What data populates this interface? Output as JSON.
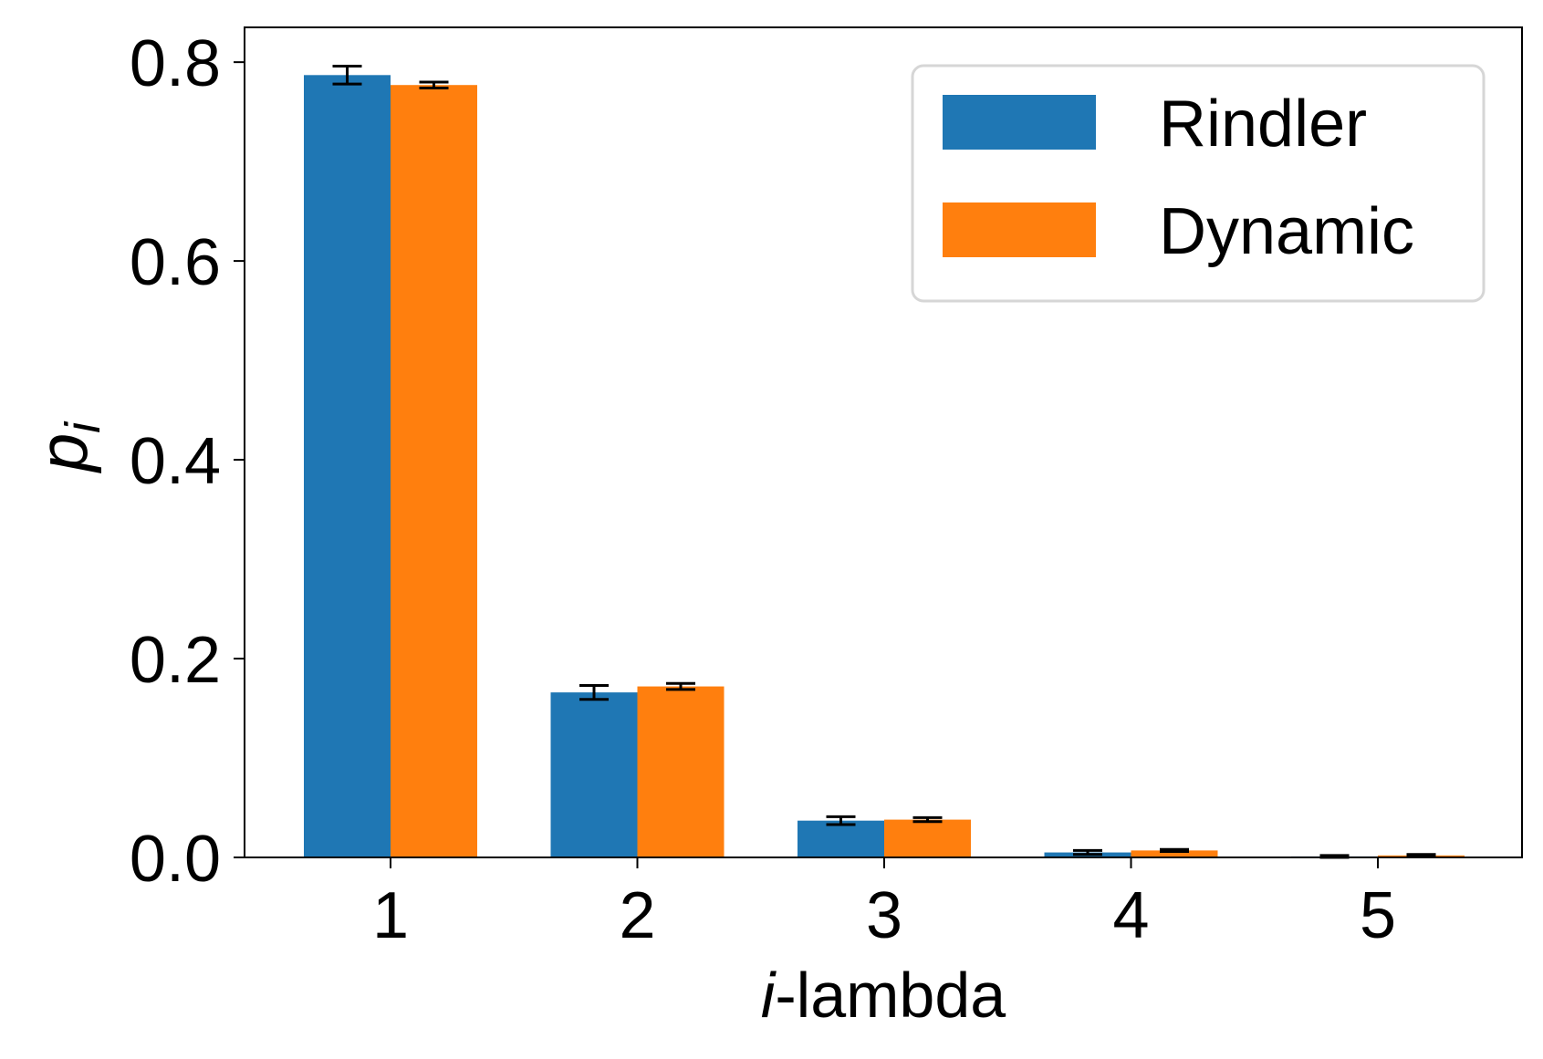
{
  "chart_data": {
    "type": "bar",
    "categories": [
      "1",
      "2",
      "3",
      "4",
      "5"
    ],
    "series": [
      {
        "name": "Rindler",
        "color": "#1f77b4",
        "values": [
          0.787,
          0.166,
          0.037,
          0.005,
          0.001
        ],
        "errors": [
          0.009,
          0.007,
          0.004,
          0.002,
          0.001
        ]
      },
      {
        "name": "Dynamic",
        "color": "#ff7f0e",
        "values": [
          0.777,
          0.172,
          0.038,
          0.007,
          0.002
        ],
        "errors": [
          0.003,
          0.003,
          0.002,
          0.001,
          0.001
        ]
      }
    ],
    "xlabel_italic": "i",
    "xlabel_rest": "-lambda",
    "ylabel_main": "p",
    "ylabel_sub": "i",
    "ylim": [
      0,
      0.835
    ],
    "yticks": [
      "0.0",
      "0.2",
      "0.4",
      "0.6",
      "0.8"
    ],
    "ytick_values": [
      0,
      0.2,
      0.4,
      0.6,
      0.8
    ],
    "legend_position": "top-right",
    "grid": false
  }
}
